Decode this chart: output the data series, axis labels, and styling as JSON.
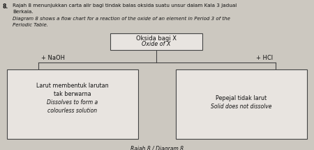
{
  "title_num": "8.",
  "title_line1": "Rajah 8 menunjukkan carta alir bagi tindak balas oksida suatu unsur dalam Kala 3 Jadual",
  "title_line2": "Berkala.",
  "subtitle_line1": "Diagram 8 shows a flow chart for a reaction of the oxide of an element in Period 3 of the",
  "subtitle_line2": "Periodic Table.",
  "top_box_line1": "Oksida bagi X",
  "top_box_line2": "Oxide of X",
  "left_label": "+ NaOH",
  "right_label": "+ HCl",
  "left_box_line1": "Larut membentuk larutan",
  "left_box_line2": "tak berwarna",
  "left_box_line3": "Dissolves to form a",
  "left_box_line4": "colourless solution",
  "right_box_line1": "Pepejal tidak larut",
  "right_box_line2": "Solid does not dissolve",
  "caption": "Rajah 8 / Diagram 8",
  "bg_color": "#ccc8c0",
  "box_face_color": "#e8e4e0",
  "box_edge_color": "#444444",
  "text_color": "#111111",
  "line_color": "#444444"
}
